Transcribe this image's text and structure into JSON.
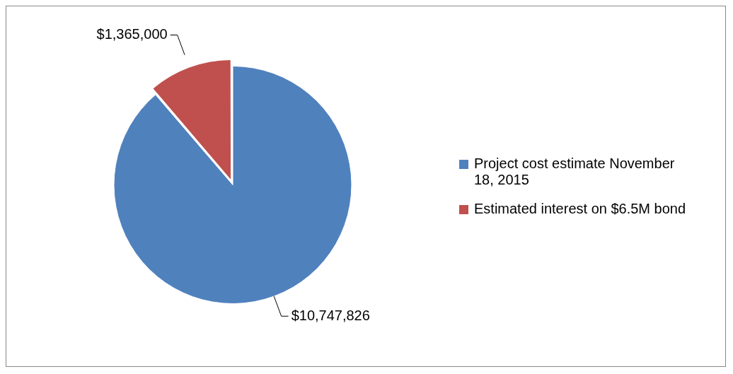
{
  "chart_data": {
    "type": "pie",
    "categories": [
      "Project cost estimate November 18, 2015",
      "Estimated interest on $6.5M bond"
    ],
    "values": [
      10747826,
      1365000
    ],
    "colors": [
      "#4f81bd",
      "#c0504d"
    ],
    "value_labels": [
      "$10,747,826",
      "$1,365,000"
    ],
    "legend": "right"
  }
}
